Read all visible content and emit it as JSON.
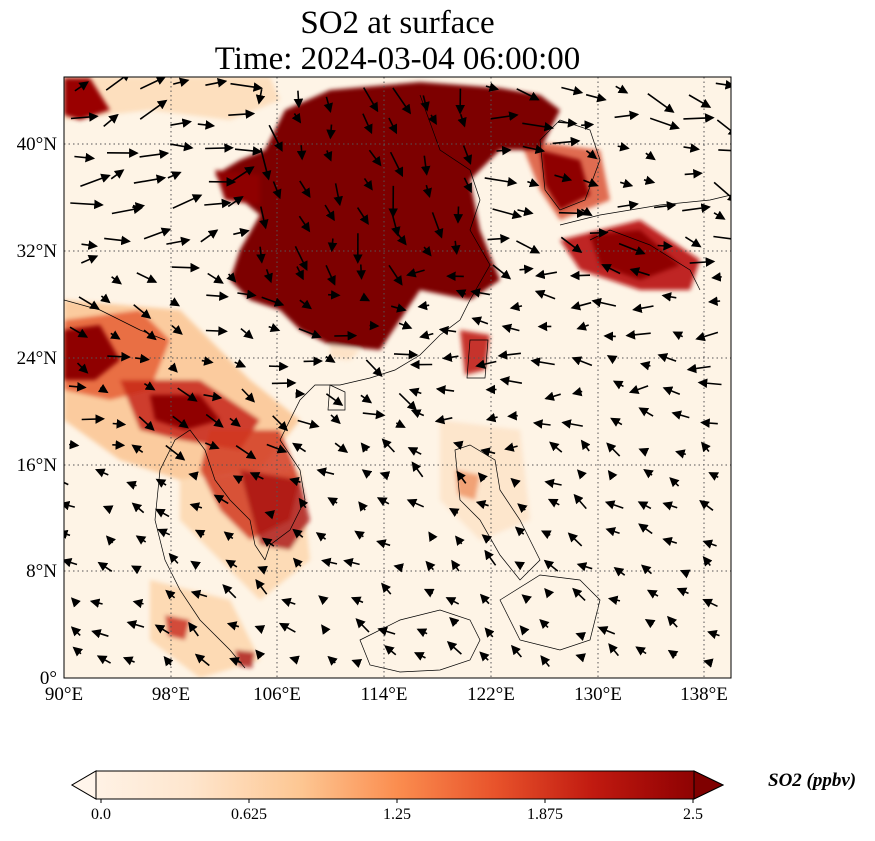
{
  "title": {
    "line1": "SO2 at surface",
    "line2": "Time: 2024-03-04 06:00:00"
  },
  "map": {
    "lon_range": [
      90,
      140
    ],
    "lat_range": [
      0,
      45
    ],
    "x_ticks": [
      "90°E",
      "98°E",
      "106°E",
      "114°E",
      "122°E",
      "130°E",
      "138°E"
    ],
    "y_ticks": [
      "0°",
      "8°N",
      "16°N",
      "24°N",
      "32°N",
      "40°N"
    ],
    "grid": "dotted",
    "field_colors": {
      "background": "#fef4e6",
      "low": "#fcd3a8",
      "mid": "#e8643a",
      "high": "#b8130f",
      "max": "#7d0000"
    },
    "vector_color": "#000000"
  },
  "colorbar": {
    "labels": [
      "0.0",
      "0.625",
      "1.25",
      "1.875",
      "2.5"
    ],
    "units": "SO2 (ppbv)",
    "range": [
      0,
      2.5
    ],
    "extend": "both"
  }
}
